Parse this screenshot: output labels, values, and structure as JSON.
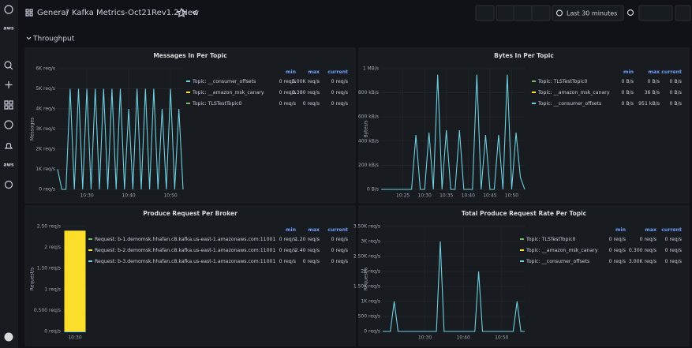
{
  "header": {
    "folder": "General",
    "separator": "/",
    "title": "Kafka Metrics-Oct21Rev1.2-New",
    "time_range": "Last 30 minutes"
  },
  "sidebar_labels": [
    "aws",
    "aws"
  ],
  "row": {
    "title": "Throughput"
  },
  "panels": [
    {
      "type": "line",
      "title": "Messages In Per Topic",
      "y_label": "Messages",
      "ylim": [
        0,
        6000
      ],
      "yticks": [
        {
          "value": 0,
          "label": "0 req/s"
        },
        {
          "value": 1000,
          "label": "1K req/s"
        },
        {
          "value": 2000,
          "label": "2K req/s"
        },
        {
          "value": 3000,
          "label": "3K req/s"
        },
        {
          "value": 4000,
          "label": "4K req/s"
        },
        {
          "value": 5000,
          "label": "5K req/s"
        },
        {
          "value": 6000,
          "label": "6K req/s"
        }
      ],
      "xlim": [
        "10:23",
        "10:53"
      ],
      "xticks": [
        "10:30",
        "10:40",
        "10:50"
      ],
      "x": [
        "10:23",
        "10:24",
        "10:25",
        "10:26",
        "10:27",
        "10:28",
        "10:29",
        "10:30",
        "10:31",
        "10:32",
        "10:33",
        "10:34",
        "10:35",
        "10:36",
        "10:37",
        "10:38",
        "10:39",
        "10:40",
        "10:41",
        "10:42",
        "10:43",
        "10:44",
        "10:45",
        "10:46",
        "10:47",
        "10:48",
        "10:49",
        "10:50",
        "10:51",
        "10:52",
        "10:53"
      ],
      "legend_headers": [
        "min",
        "max",
        "current"
      ],
      "series": [
        {
          "name": "Topic: __consumer_offsets",
          "color": "#6ed0e0",
          "legend_values": [
            "0 req/s",
            "5.00K req/s",
            "0 req/s"
          ],
          "values": [
            1000,
            0,
            0,
            5000,
            0,
            5000,
            0,
            5000,
            0,
            5000,
            0,
            5000,
            0,
            5000,
            0,
            5000,
            0,
            4000,
            0,
            5000,
            0,
            5000,
            0,
            5000,
            0,
            4000,
            0,
            5000,
            0,
            4000,
            0
          ]
        },
        {
          "name": "Topic: __amazon_msk_canary",
          "color": "#fade2a",
          "legend_values": [
            "0 req/s",
            "0.380 req/s",
            "0 req/s"
          ]
        },
        {
          "name": "Topic: TLSTestTopic0",
          "color": "#73bf69",
          "legend_values": [
            "0 req/s",
            "0 req/s",
            "0 req/s"
          ]
        }
      ]
    },
    {
      "type": "line",
      "title": "Bytes In Per Topic",
      "y_label": "Bytes/s",
      "ylim": [
        0,
        1000
      ],
      "yticks": [
        {
          "value": 0,
          "label": "0 B/s"
        },
        {
          "value": 200,
          "label": "200 kB/s"
        },
        {
          "value": 400,
          "label": "400 kB/s"
        },
        {
          "value": 600,
          "label": "600 kB/s"
        },
        {
          "value": 800,
          "label": "800 kB/s"
        },
        {
          "value": 1000,
          "label": "1 MB/s"
        }
      ],
      "xlim": [
        "10:20",
        "10:53"
      ],
      "xticks": [
        "10:25",
        "10:30",
        "10:35",
        "10:40",
        "10:45",
        "10:50"
      ],
      "x": [
        "10:20",
        "10:21",
        "10:22",
        "10:23",
        "10:24",
        "10:25",
        "10:26",
        "10:27",
        "10:28",
        "10:29",
        "10:30",
        "10:31",
        "10:32",
        "10:33",
        "10:34",
        "10:35",
        "10:36",
        "10:37",
        "10:38",
        "10:39",
        "10:40",
        "10:41",
        "10:42",
        "10:43",
        "10:44",
        "10:45",
        "10:46",
        "10:47",
        "10:48",
        "10:49",
        "10:50",
        "10:51",
        "10:52",
        "10:53"
      ],
      "legend_headers": [
        "min",
        "max",
        "current"
      ],
      "series": [
        {
          "name": "Topic: TLSTestTopic0",
          "color": "#73bf69",
          "legend_values": [
            "0 B/s",
            "0 B/s",
            "0 B/s"
          ]
        },
        {
          "name": "Topic: __amazon_msk_canary",
          "color": "#fade2a",
          "legend_values": [
            "0 B/s",
            "36 B/s",
            "0 B/s"
          ]
        },
        {
          "name": "Topic: __consumer_offsets",
          "color": "#6ed0e0",
          "legend_values": [
            "0 B/s",
            "951 kB/s",
            "0 B/s"
          ],
          "values": [
            0,
            0,
            0,
            0,
            0,
            0,
            0,
            0,
            450,
            0,
            0,
            470,
            0,
            950,
            0,
            490,
            0,
            0,
            490,
            0,
            0,
            0,
            950,
            0,
            450,
            0,
            0,
            450,
            0,
            950,
            0,
            470,
            100,
            0
          ]
        }
      ]
    },
    {
      "type": "bar",
      "title": "Produce Request Per Broker",
      "y_label": "Request/s",
      "ylim": [
        0,
        2.5
      ],
      "yticks": [
        {
          "value": 0,
          "label": "0 req/s"
        },
        {
          "value": 0.5,
          "label": "0.500 req/s"
        },
        {
          "value": 1,
          "label": "1 req/s"
        },
        {
          "value": 1.5,
          "label": "1.50 req/s"
        },
        {
          "value": 2,
          "label": "2 req/s"
        },
        {
          "value": 2.5,
          "label": "2.50 req/s"
        }
      ],
      "categories": [
        "10:30"
      ],
      "legend_headers": [
        "min",
        "max",
        "current"
      ],
      "series": [
        {
          "name": "Request: b-1.demomsk.hhafan.c8.kafka.us-east-1.amazonaws.com:11001",
          "color": "#73bf69",
          "legend_values": [
            "0 req/s",
            "1.20 req/s",
            "0 req/s"
          ],
          "values": [
            1.2
          ]
        },
        {
          "name": "Request: b-2.demomsk.hhafan.c8.kafka.us-east-1.amazonaws.com:11001",
          "color": "#fade2a",
          "legend_values": [
            "0 req/s",
            "2.40 req/s",
            "0 req/s"
          ],
          "values": [
            2.4
          ]
        },
        {
          "name": "Request: b-3.demomsk.hhafan.c8.kafka.us-east-1.amazonaws.com:11001",
          "color": "#6ed0e0",
          "legend_values": [
            "0 req/s",
            "0 req/s",
            "0 req/s"
          ],
          "values": [
            0
          ]
        }
      ]
    },
    {
      "type": "line",
      "title": "Total Produce Request Rate Per Topic",
      "y_label": "Request/s",
      "ylim": [
        0,
        3500
      ],
      "yticks": [
        {
          "value": 0,
          "label": "0 req/s"
        },
        {
          "value": 500,
          "label": "500 req/s"
        },
        {
          "value": 1000,
          "label": "1K req/s"
        },
        {
          "value": 1500,
          "label": "1.50K req/s"
        },
        {
          "value": 2000,
          "label": "2K req/s"
        },
        {
          "value": 2500,
          "label": "2.50K req/s"
        },
        {
          "value": 3000,
          "label": "3K req/s"
        },
        {
          "value": 3500,
          "label": "3.50K req/s"
        }
      ],
      "xlim": [
        "10:19",
        "10:56"
      ],
      "xticks": [
        "10:30",
        "10:40",
        "10:50"
      ],
      "x": [
        "10:19",
        "10:20",
        "10:21",
        "10:22",
        "10:23",
        "10:24",
        "10:25",
        "10:26",
        "10:27",
        "10:28",
        "10:29",
        "10:30",
        "10:31",
        "10:32",
        "10:33",
        "10:34",
        "10:35",
        "10:36",
        "10:37",
        "10:38",
        "10:39",
        "10:40",
        "10:41",
        "10:42",
        "10:43",
        "10:44",
        "10:45",
        "10:46",
        "10:47",
        "10:48",
        "10:49",
        "10:50",
        "10:51",
        "10:52",
        "10:53",
        "10:54",
        "10:55",
        "10:56"
      ],
      "legend_headers": [
        "min",
        "max",
        "current"
      ],
      "series": [
        {
          "name": "Topic: TLSTestTopic0",
          "color": "#73bf69",
          "legend_values": [
            "0 req/s",
            "0 req/s",
            "0 req/s"
          ]
        },
        {
          "name": "Topic: __amazon_msk_canary",
          "color": "#fade2a",
          "legend_values": [
            "0 req/s",
            "0.300 req/s",
            "0 req/s"
          ]
        },
        {
          "name": "Topic: __consumer_offsets",
          "color": "#6ed0e0",
          "legend_values": [
            "0 req/s",
            "3.00K req/s",
            "0 req/s"
          ],
          "values": [
            0,
            0,
            0,
            1000,
            0,
            0,
            0,
            0,
            0,
            0,
            0,
            0,
            0,
            0,
            0,
            3000,
            0,
            0,
            0,
            0,
            0,
            0,
            0,
            0,
            0,
            2000,
            0,
            0,
            0,
            0,
            0,
            0,
            0,
            0,
            0,
            1000,
            0,
            0
          ]
        }
      ]
    }
  ]
}
